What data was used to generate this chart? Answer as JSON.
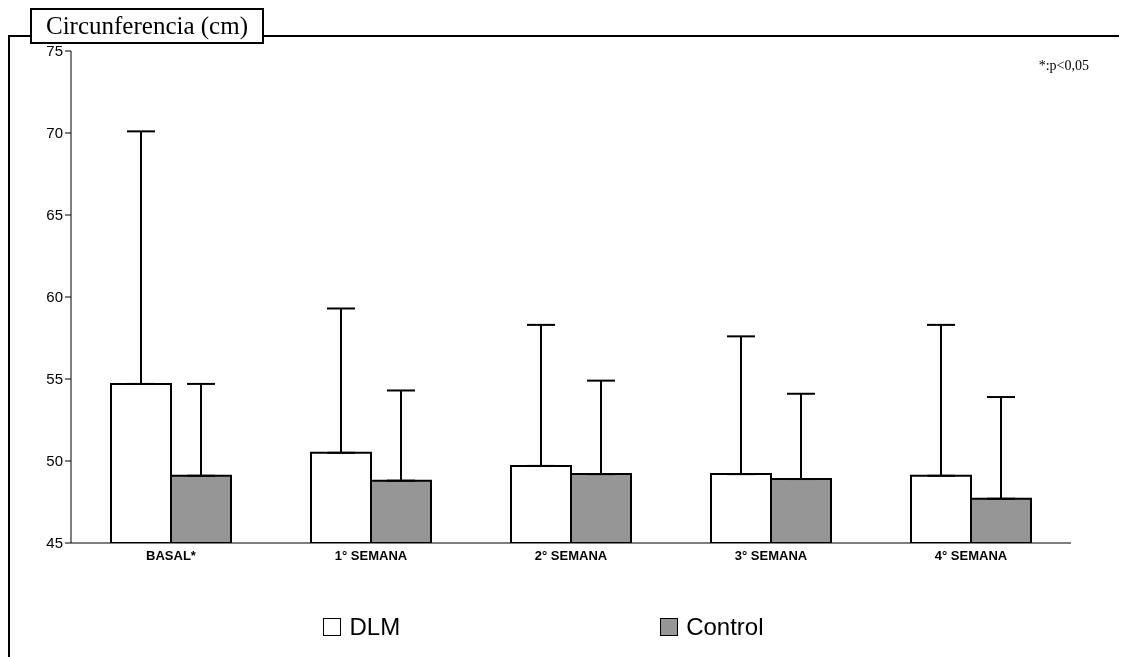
{
  "chart_data": {
    "type": "bar",
    "title": "Circunferencia (cm)",
    "categories": [
      "BASAL*",
      "1° SEMANA",
      "2° SEMANA",
      "3° SEMANA",
      "4° SEMANA"
    ],
    "series": [
      {
        "name": "DLM",
        "color": "#ffffff",
        "values": [
          54.7,
          50.5,
          49.7,
          49.2,
          49.1
        ],
        "errors": [
          [
            54.7,
            70.1
          ],
          [
            50.5,
            59.3
          ],
          [
            49.7,
            58.3
          ],
          [
            49.2,
            57.6
          ],
          [
            49.1,
            58.3
          ]
        ]
      },
      {
        "name": "Control",
        "color": "#969696",
        "values": [
          49.1,
          48.8,
          49.2,
          48.9,
          47.7
        ],
        "errors": [
          [
            49.1,
            54.7
          ],
          [
            48.8,
            54.3
          ],
          [
            49.2,
            54.9
          ],
          [
            48.9,
            54.1
          ],
          [
            47.7,
            53.9
          ]
        ]
      }
    ],
    "ylim": [
      45,
      75
    ],
    "yticks": [
      45,
      50,
      55,
      60,
      65,
      70,
      75
    ],
    "legend": "bottom",
    "annotations": [
      "*:p<0,05"
    ]
  }
}
